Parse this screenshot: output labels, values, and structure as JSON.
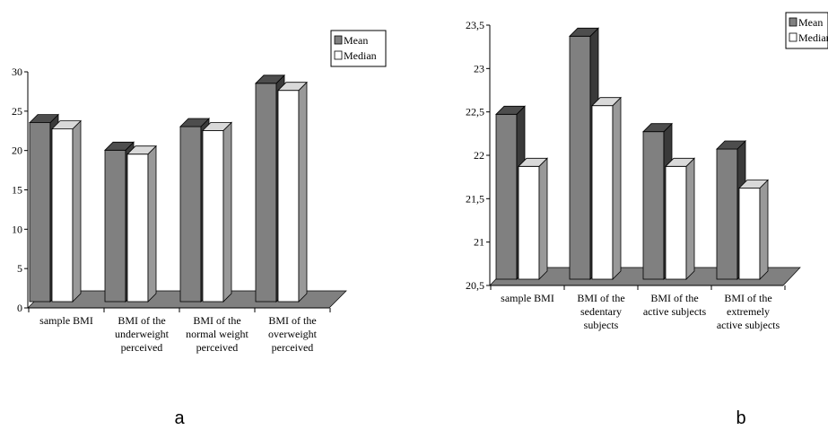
{
  "chart_data": [
    {
      "type": "bar",
      "panel_label": "a",
      "categories": [
        [
          "sample BMI"
        ],
        [
          "BMI of the",
          "underweight",
          "perceived"
        ],
        [
          "BMI of the",
          "normal weight",
          "perceived"
        ],
        [
          "BMI of the",
          "overweight",
          "perceived"
        ]
      ],
      "series": [
        {
          "name": "Mean",
          "values": [
            22.8,
            19.3,
            22.3,
            27.8
          ],
          "color": "#808080"
        },
        {
          "name": "Median",
          "values": [
            22.0,
            18.8,
            21.8,
            26.9
          ],
          "color": "#ffffff"
        }
      ],
      "ylim": [
        0,
        30
      ],
      "yticks": [
        "0",
        "5",
        "10",
        "15",
        "20",
        "25",
        "30"
      ],
      "legend": "top-right",
      "grid": false
    },
    {
      "type": "bar",
      "panel_label": "b",
      "categories": [
        [
          "sample BMI"
        ],
        [
          "BMI of the",
          "sedentary",
          "subjects"
        ],
        [
          "BMI of the",
          "active subjects"
        ],
        [
          "BMI of the",
          "extremely",
          "active subjects"
        ]
      ],
      "series": [
        {
          "name": "Mean",
          "values": [
            22.4,
            23.3,
            22.2,
            22.0
          ],
          "color": "#808080"
        },
        {
          "name": "Median",
          "values": [
            21.8,
            22.5,
            21.8,
            21.55
          ],
          "color": "#ffffff"
        }
      ],
      "ylim": [
        20.5,
        23.5
      ],
      "yticks": [
        "20,5",
        "21",
        "21,5",
        "22",
        "22,5",
        "23",
        "23,5"
      ],
      "legend": "top-right",
      "grid": false
    }
  ]
}
